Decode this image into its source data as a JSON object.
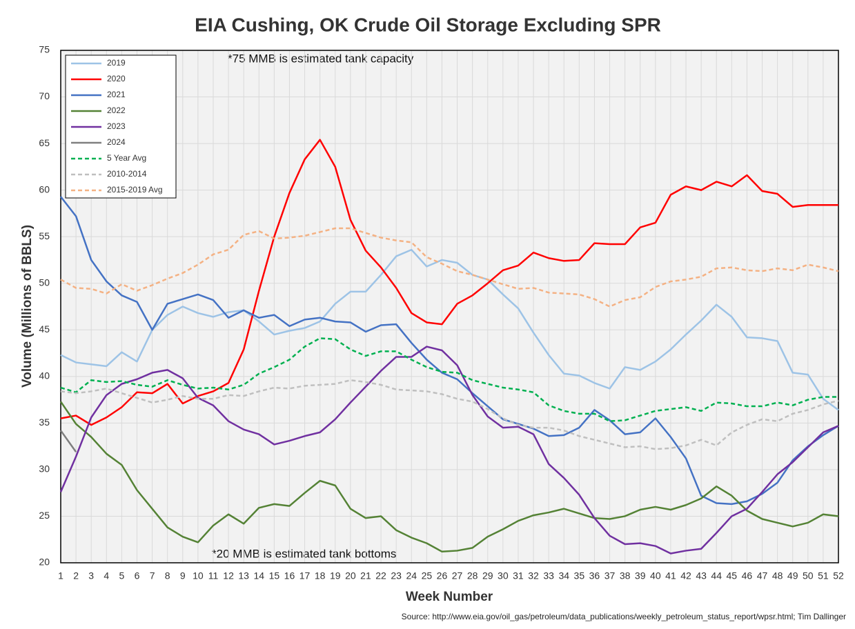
{
  "chart_data": {
    "type": "line",
    "title": "EIA Cushing, OK Crude Oil Storage Excluding SPR",
    "x_label": "Week Number",
    "y_label": "Volume (Millions of BBLS)",
    "annotations": [
      "*75 MMB is estimated tank capacity",
      "*20 MMB is estimated tank bottoms"
    ],
    "source": "Source: http://www.eia.gov/oil_gas/petroleum/data_publications/weekly_petroleum_status_report/wpsr.html; Tim Dallinger",
    "x": [
      1,
      2,
      3,
      4,
      5,
      6,
      7,
      8,
      9,
      10,
      11,
      12,
      13,
      14,
      15,
      16,
      17,
      18,
      19,
      20,
      21,
      22,
      23,
      24,
      25,
      26,
      27,
      28,
      29,
      30,
      31,
      32,
      33,
      34,
      35,
      36,
      37,
      38,
      39,
      40,
      41,
      42,
      43,
      44,
      45,
      46,
      47,
      48,
      49,
      50,
      51,
      52
    ],
    "xlim": [
      1,
      52
    ],
    "xticks": [
      1,
      2,
      3,
      4,
      5,
      6,
      7,
      8,
      9,
      10,
      11,
      12,
      13,
      14,
      15,
      16,
      17,
      18,
      19,
      20,
      21,
      22,
      23,
      24,
      25,
      26,
      27,
      28,
      29,
      30,
      31,
      32,
      33,
      34,
      35,
      36,
      37,
      38,
      39,
      40,
      41,
      42,
      43,
      44,
      45,
      46,
      47,
      48,
      49,
      50,
      51,
      52
    ],
    "ylim": [
      20,
      75
    ],
    "yticks": [
      20,
      25,
      30,
      35,
      40,
      45,
      50,
      55,
      60,
      65,
      70,
      75
    ],
    "grid": true,
    "legend": "top-left",
    "series": [
      {
        "name": "2019",
        "color": "#9dc3e6",
        "dashed": false,
        "values": [
          42.3,
          41.5,
          41.3,
          41.1,
          42.6,
          41.6,
          45.0,
          46.6,
          47.5,
          46.8,
          46.4,
          46.9,
          47.1,
          45.9,
          44.5,
          44.9,
          45.2,
          45.9,
          47.8,
          49.1,
          49.1,
          50.9,
          52.9,
          53.6,
          51.8,
          52.5,
          52.2,
          50.9,
          50.4,
          48.8,
          47.3,
          44.7,
          42.3,
          40.3,
          40.1,
          39.3,
          38.7,
          41.0,
          40.7,
          41.6,
          42.9,
          44.5,
          46.0,
          47.7,
          46.4,
          44.2,
          44.1,
          43.8,
          40.4,
          40.2,
          37.6,
          36.4
        ]
      },
      {
        "name": "2020",
        "color": "#ff0000",
        "dashed": false,
        "values": [
          35.5,
          35.8,
          34.8,
          35.6,
          36.7,
          38.3,
          38.2,
          39.2,
          37.1,
          37.9,
          38.4,
          39.3,
          42.9,
          49.2,
          55.0,
          59.7,
          63.3,
          65.4,
          62.5,
          56.8,
          53.5,
          51.7,
          49.5,
          46.8,
          45.8,
          45.6,
          47.8,
          48.7,
          50.0,
          51.4,
          51.9,
          53.3,
          52.7,
          52.4,
          52.5,
          54.3,
          54.2,
          54.2,
          56.0,
          56.5,
          59.5,
          60.4,
          60.0,
          60.9,
          60.4,
          61.6,
          59.9,
          59.6,
          58.2,
          58.4,
          58.4,
          58.4
        ]
      },
      {
        "name": "2021",
        "color": "#4472c4",
        "dashed": false,
        "values": [
          59.3,
          57.2,
          52.5,
          50.2,
          48.7,
          48.0,
          45.0,
          47.8,
          48.3,
          48.8,
          48.2,
          46.3,
          47.1,
          46.3,
          46.6,
          45.4,
          46.1,
          46.3,
          45.9,
          45.8,
          44.8,
          45.5,
          45.6,
          43.6,
          41.8,
          40.4,
          39.7,
          38.2,
          36.8,
          35.4,
          34.9,
          34.4,
          33.6,
          33.7,
          34.5,
          36.4,
          35.3,
          33.8,
          34.0,
          35.5,
          33.5,
          31.2,
          27.2,
          26.4,
          26.3,
          26.6,
          27.4,
          28.6,
          31.0,
          32.5,
          33.7,
          34.7
        ]
      },
      {
        "name": "2022",
        "color": "#548235",
        "dashed": false,
        "values": [
          37.3,
          34.9,
          33.5,
          31.7,
          30.5,
          27.8,
          25.8,
          23.8,
          22.8,
          22.2,
          24.0,
          25.2,
          24.2,
          25.9,
          26.3,
          26.1,
          27.5,
          28.8,
          28.3,
          25.8,
          24.8,
          25.0,
          23.5,
          22.7,
          22.1,
          21.2,
          21.3,
          21.6,
          22.8,
          23.6,
          24.5,
          25.1,
          25.4,
          25.8,
          25.3,
          24.8,
          24.7,
          25.0,
          25.7,
          26.0,
          25.7,
          26.2,
          26.9,
          28.2,
          27.2,
          25.6,
          24.7,
          24.3,
          23.9,
          24.3,
          25.2,
          25.0
        ]
      },
      {
        "name": "2023",
        "color": "#7030a0",
        "dashed": false,
        "values": [
          27.6,
          31.4,
          35.6,
          38.0,
          39.2,
          39.7,
          40.4,
          40.7,
          39.8,
          37.7,
          36.9,
          35.2,
          34.3,
          33.8,
          32.7,
          33.1,
          33.6,
          34.0,
          35.4,
          37.2,
          38.9,
          40.6,
          42.1,
          42.1,
          43.2,
          42.8,
          41.2,
          38.0,
          35.7,
          34.5,
          34.6,
          33.8,
          30.6,
          29.1,
          27.3,
          24.8,
          22.9,
          22.0,
          22.1,
          21.8,
          21.0,
          21.3,
          21.5,
          23.2,
          25.0,
          25.8,
          27.6,
          29.5,
          30.8,
          32.4,
          34.0,
          34.7
        ]
      },
      {
        "name": "2024",
        "color": "#7f7f7f",
        "dashed": false,
        "values": [
          34.2,
          31.9,
          null,
          null,
          null,
          null,
          null,
          null,
          null,
          null,
          null,
          null,
          null,
          null,
          null,
          null,
          null,
          null,
          null,
          null,
          null,
          null,
          null,
          null,
          null,
          null,
          null,
          null,
          null,
          null,
          null,
          null,
          null,
          null,
          null,
          null,
          null,
          null,
          null,
          null,
          null,
          null,
          null,
          null,
          null,
          null,
          null,
          null,
          null,
          null,
          null,
          null
        ]
      },
      {
        "name": "5 Year Avg",
        "color": "#00b050",
        "dashed": true,
        "values": [
          38.8,
          38.3,
          39.6,
          39.4,
          39.5,
          39.1,
          38.9,
          39.6,
          39.1,
          38.7,
          38.8,
          38.6,
          39.1,
          40.3,
          41.0,
          41.8,
          43.2,
          44.1,
          44.0,
          42.9,
          42.2,
          42.7,
          42.7,
          41.8,
          41.0,
          40.5,
          40.4,
          39.6,
          39.2,
          38.8,
          38.6,
          38.3,
          36.9,
          36.3,
          36.0,
          36.0,
          35.2,
          35.3,
          35.8,
          36.3,
          36.5,
          36.7,
          36.3,
          37.2,
          37.1,
          36.8,
          36.8,
          37.2,
          36.9,
          37.5,
          37.8,
          37.8
        ]
      },
      {
        "name": "2010-2014",
        "color": "#bfbfbf",
        "dashed": true,
        "values": [
          38.4,
          38.2,
          38.4,
          38.7,
          38.2,
          37.7,
          37.2,
          37.5,
          37.9,
          37.6,
          37.6,
          38.0,
          37.9,
          38.4,
          38.8,
          38.7,
          39.0,
          39.1,
          39.2,
          39.6,
          39.4,
          39.1,
          38.6,
          38.5,
          38.4,
          38.1,
          37.6,
          37.3,
          36.5,
          35.5,
          34.8,
          34.5,
          34.5,
          34.2,
          33.6,
          33.2,
          32.8,
          32.4,
          32.5,
          32.2,
          32.3,
          32.6,
          33.2,
          32.6,
          34.0,
          34.8,
          35.4,
          35.2,
          36.0,
          36.4,
          37.0,
          37.4
        ]
      },
      {
        "name": "2015-2019 Avg",
        "color": "#f4b183",
        "dashed": true,
        "values": [
          50.4,
          49.5,
          49.4,
          48.9,
          49.9,
          49.2,
          49.8,
          50.5,
          51.1,
          52.0,
          53.1,
          53.6,
          55.2,
          55.6,
          54.8,
          54.9,
          55.1,
          55.5,
          55.9,
          55.9,
          55.4,
          54.9,
          54.6,
          54.4,
          52.8,
          52.1,
          51.3,
          50.9,
          50.4,
          49.9,
          49.4,
          49.5,
          49.0,
          48.9,
          48.8,
          48.3,
          47.5,
          48.2,
          48.5,
          49.6,
          50.2,
          50.4,
          50.7,
          51.6,
          51.7,
          51.4,
          51.3,
          51.6,
          51.4,
          52.0,
          51.7,
          51.3
        ]
      }
    ]
  }
}
